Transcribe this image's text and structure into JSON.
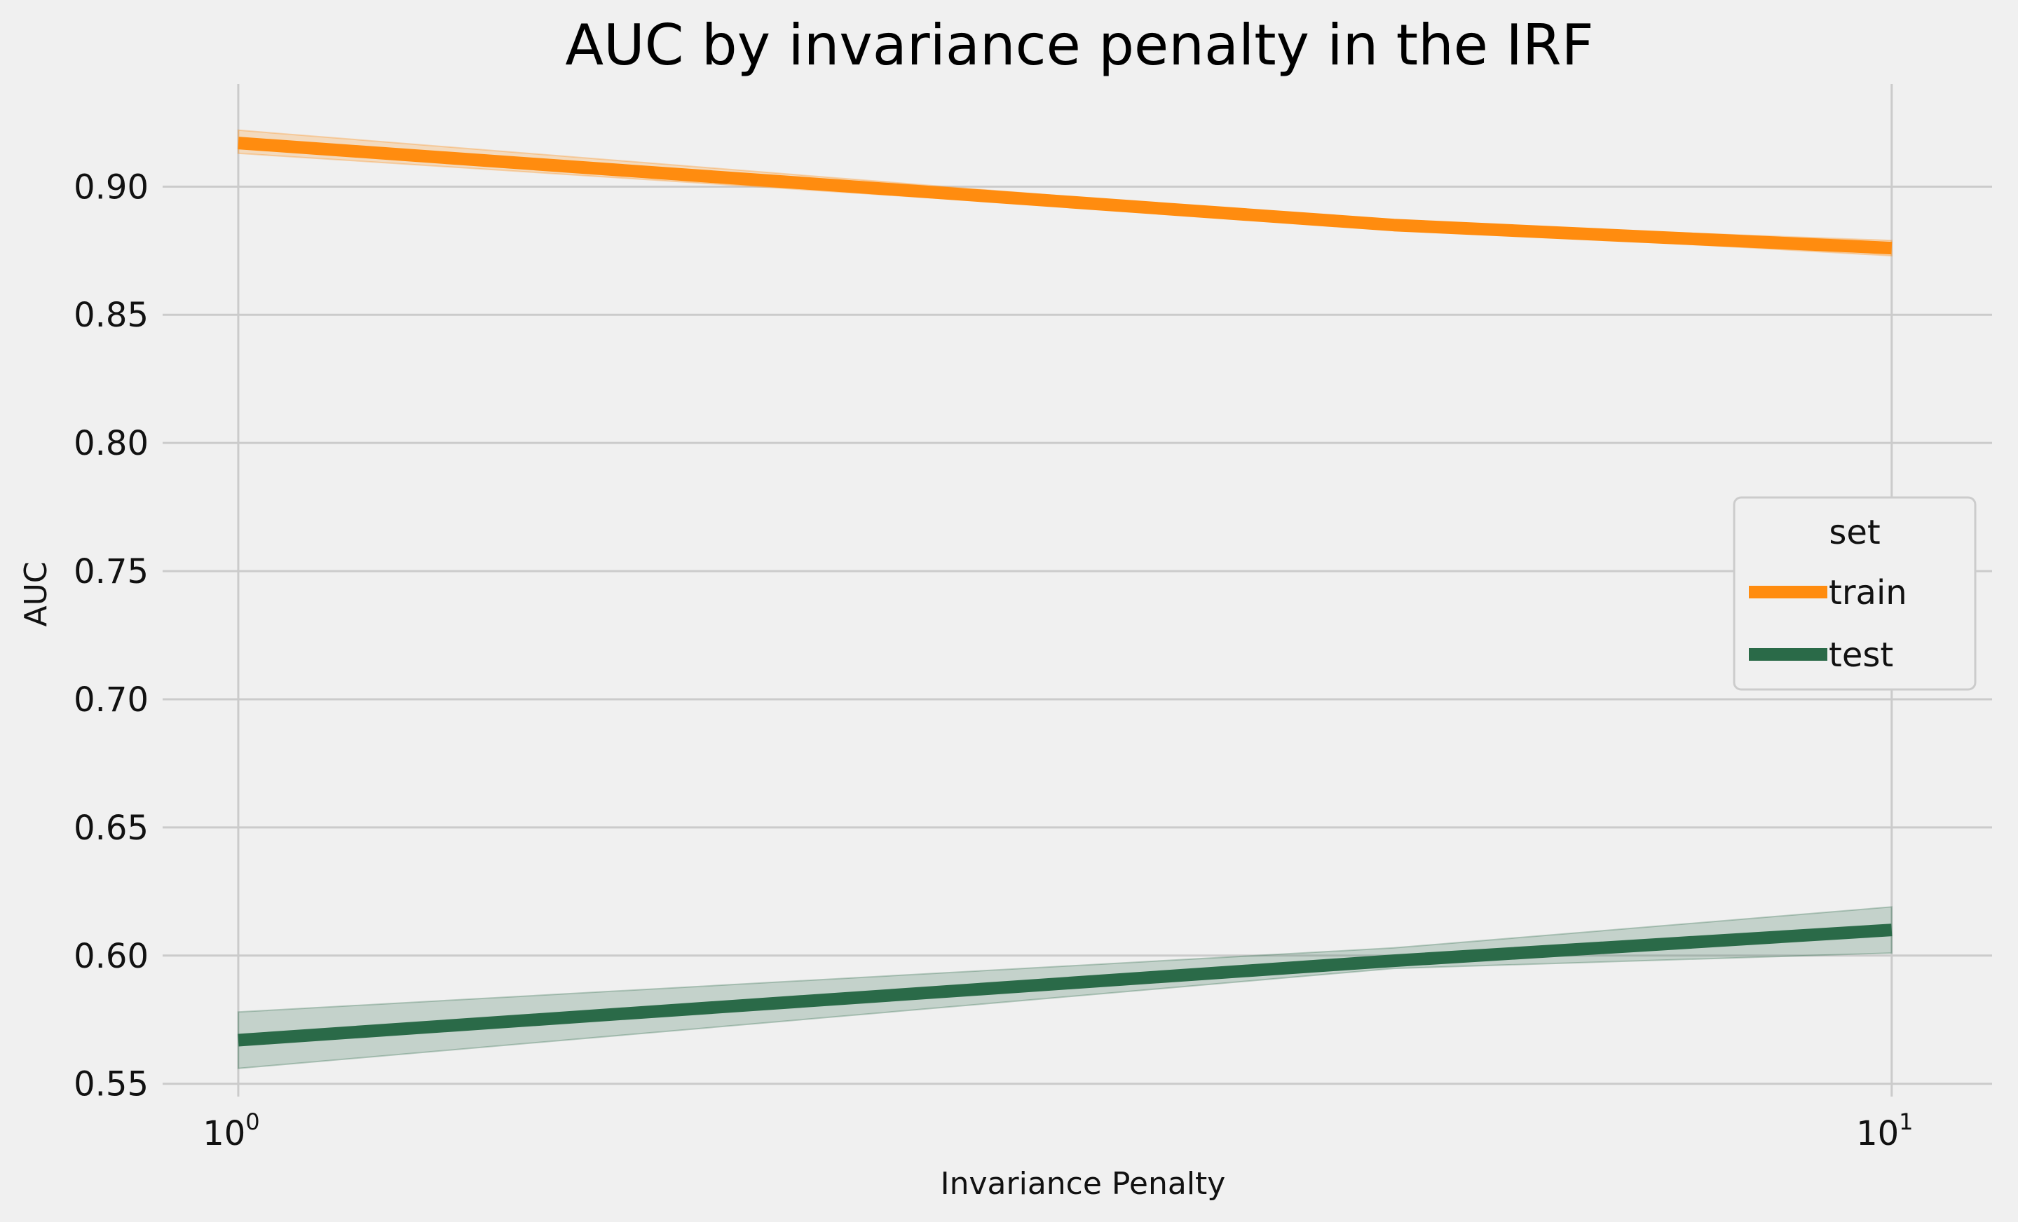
{
  "chart_data": {
    "type": "line",
    "title": "AUC by invariance penalty in the IRF",
    "xlabel": "Invariance Penalty",
    "ylabel": "AUC",
    "xscale": "log",
    "xlim": [
      0.9,
      11.5
    ],
    "ylim": [
      0.545,
      0.94
    ],
    "xticks": [
      {
        "value": 1,
        "base": "10",
        "exp": "0"
      },
      {
        "value": 10,
        "base": "10",
        "exp": "1"
      }
    ],
    "yticks": [
      0.55,
      0.6,
      0.65,
      0.7,
      0.75,
      0.8,
      0.85,
      0.9
    ],
    "ytick_labels": [
      "0.55",
      "0.60",
      "0.65",
      "0.70",
      "0.75",
      "0.80",
      "0.85",
      "0.90"
    ],
    "grid": true,
    "legend": {
      "title": "set",
      "placement": "center-right"
    },
    "series": [
      {
        "name": "train",
        "color": "#ff8c0f",
        "x": [
          1,
          5,
          10
        ],
        "y": [
          0.917,
          0.885,
          0.876
        ],
        "ci_lower": [
          0.913,
          0.884,
          0.873
        ],
        "ci_upper": [
          0.922,
          0.886,
          0.879
        ]
      },
      {
        "name": "test",
        "color": "#2a6a48",
        "x": [
          1,
          5,
          10
        ],
        "y": [
          0.567,
          0.598,
          0.61
        ],
        "ci_lower": [
          0.556,
          0.595,
          0.601
        ],
        "ci_upper": [
          0.578,
          0.603,
          0.619
        ]
      }
    ]
  }
}
